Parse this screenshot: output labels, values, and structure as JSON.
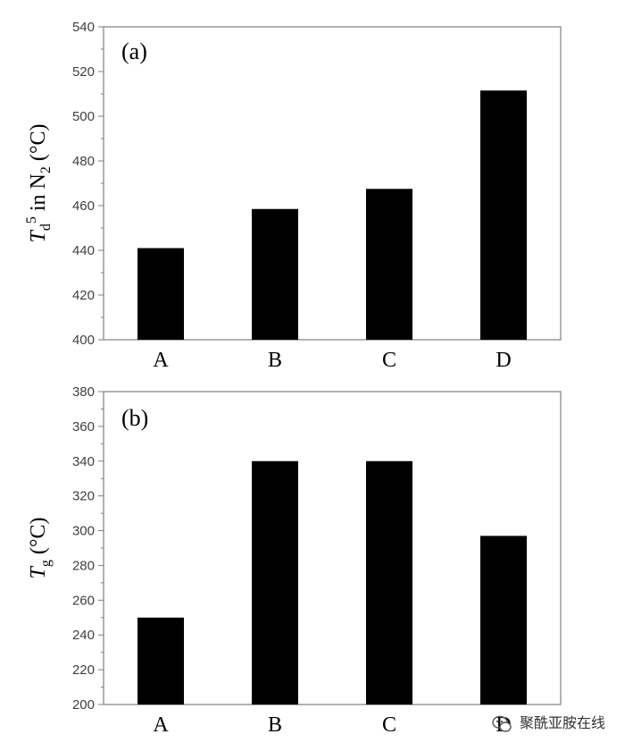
{
  "colors": {
    "bar": "#000000",
    "axis": "#7f7f7f",
    "tick_text": "#404040"
  },
  "chart_data": [
    {
      "type": "bar",
      "panel": "(a)",
      "categories": [
        "A",
        "B",
        "C",
        "D"
      ],
      "values": [
        441,
        458.5,
        467.5,
        511.5
      ],
      "ylim": [
        400,
        540
      ],
      "ytick_step": 20,
      "ylabel": {
        "main": "T",
        "sub": "d",
        "sup": "5",
        "rest": " in N",
        "rest_sub": "2",
        "unit": " (°C)"
      },
      "grid": false
    },
    {
      "type": "bar",
      "panel": "(b)",
      "categories": [
        "A",
        "B",
        "C",
        "D"
      ],
      "values": [
        250,
        340,
        340,
        297
      ],
      "ylim": [
        200,
        380
      ],
      "ytick_step": 20,
      "ylabel": {
        "main": "T",
        "sub": "g",
        "unit": " (°C)"
      },
      "grid": false
    }
  ],
  "watermark": {
    "icon": "wechat-icon",
    "text": "聚酰亚胺在线"
  }
}
